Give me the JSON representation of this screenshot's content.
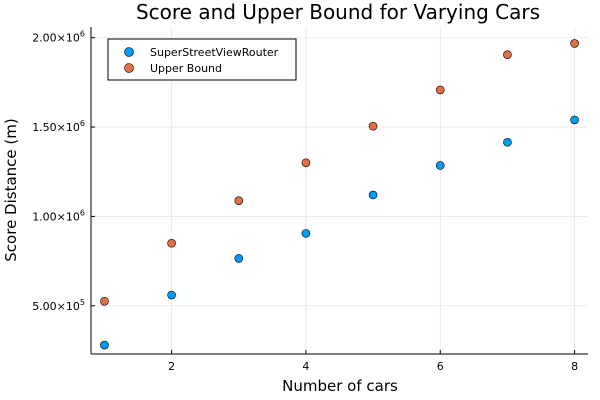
{
  "chart_data": {
    "type": "scatter",
    "title": "Score and Upper Bound for Varying Cars",
    "xlabel": "Number of cars",
    "ylabel": "Score Distance (m)",
    "xlim": [
      0.8,
      8.2
    ],
    "ylim": [
      230000,
      2060000
    ],
    "xticks": [
      2,
      4,
      6,
      8
    ],
    "xtick_labels": [
      "2",
      "4",
      "6",
      "8"
    ],
    "yticks": [
      500000,
      1000000,
      1500000,
      2000000
    ],
    "ytick_labels": [
      {
        "mantissa": "5.00×10",
        "exp": "5"
      },
      {
        "mantissa": "1.00×10",
        "exp": "6"
      },
      {
        "mantissa": "1.50×10",
        "exp": "6"
      },
      {
        "mantissa": "2.00×10",
        "exp": "6"
      }
    ],
    "grid": true,
    "legend_position": "top-left",
    "series": [
      {
        "name": "SuperStreetViewRouter",
        "color": "#009af9",
        "x": [
          1,
          2,
          3,
          4,
          5,
          6,
          7,
          8
        ],
        "y": [
          280000,
          560000,
          765000,
          905000,
          1120000,
          1285000,
          1415000,
          1540000
        ]
      },
      {
        "name": "Upper Bound",
        "color": "#e26f46",
        "x": [
          1,
          2,
          3,
          4,
          5,
          6,
          7,
          8
        ],
        "y": [
          525000,
          850000,
          1088000,
          1300000,
          1505000,
          1708000,
          1905000,
          1968000
        ]
      }
    ]
  }
}
